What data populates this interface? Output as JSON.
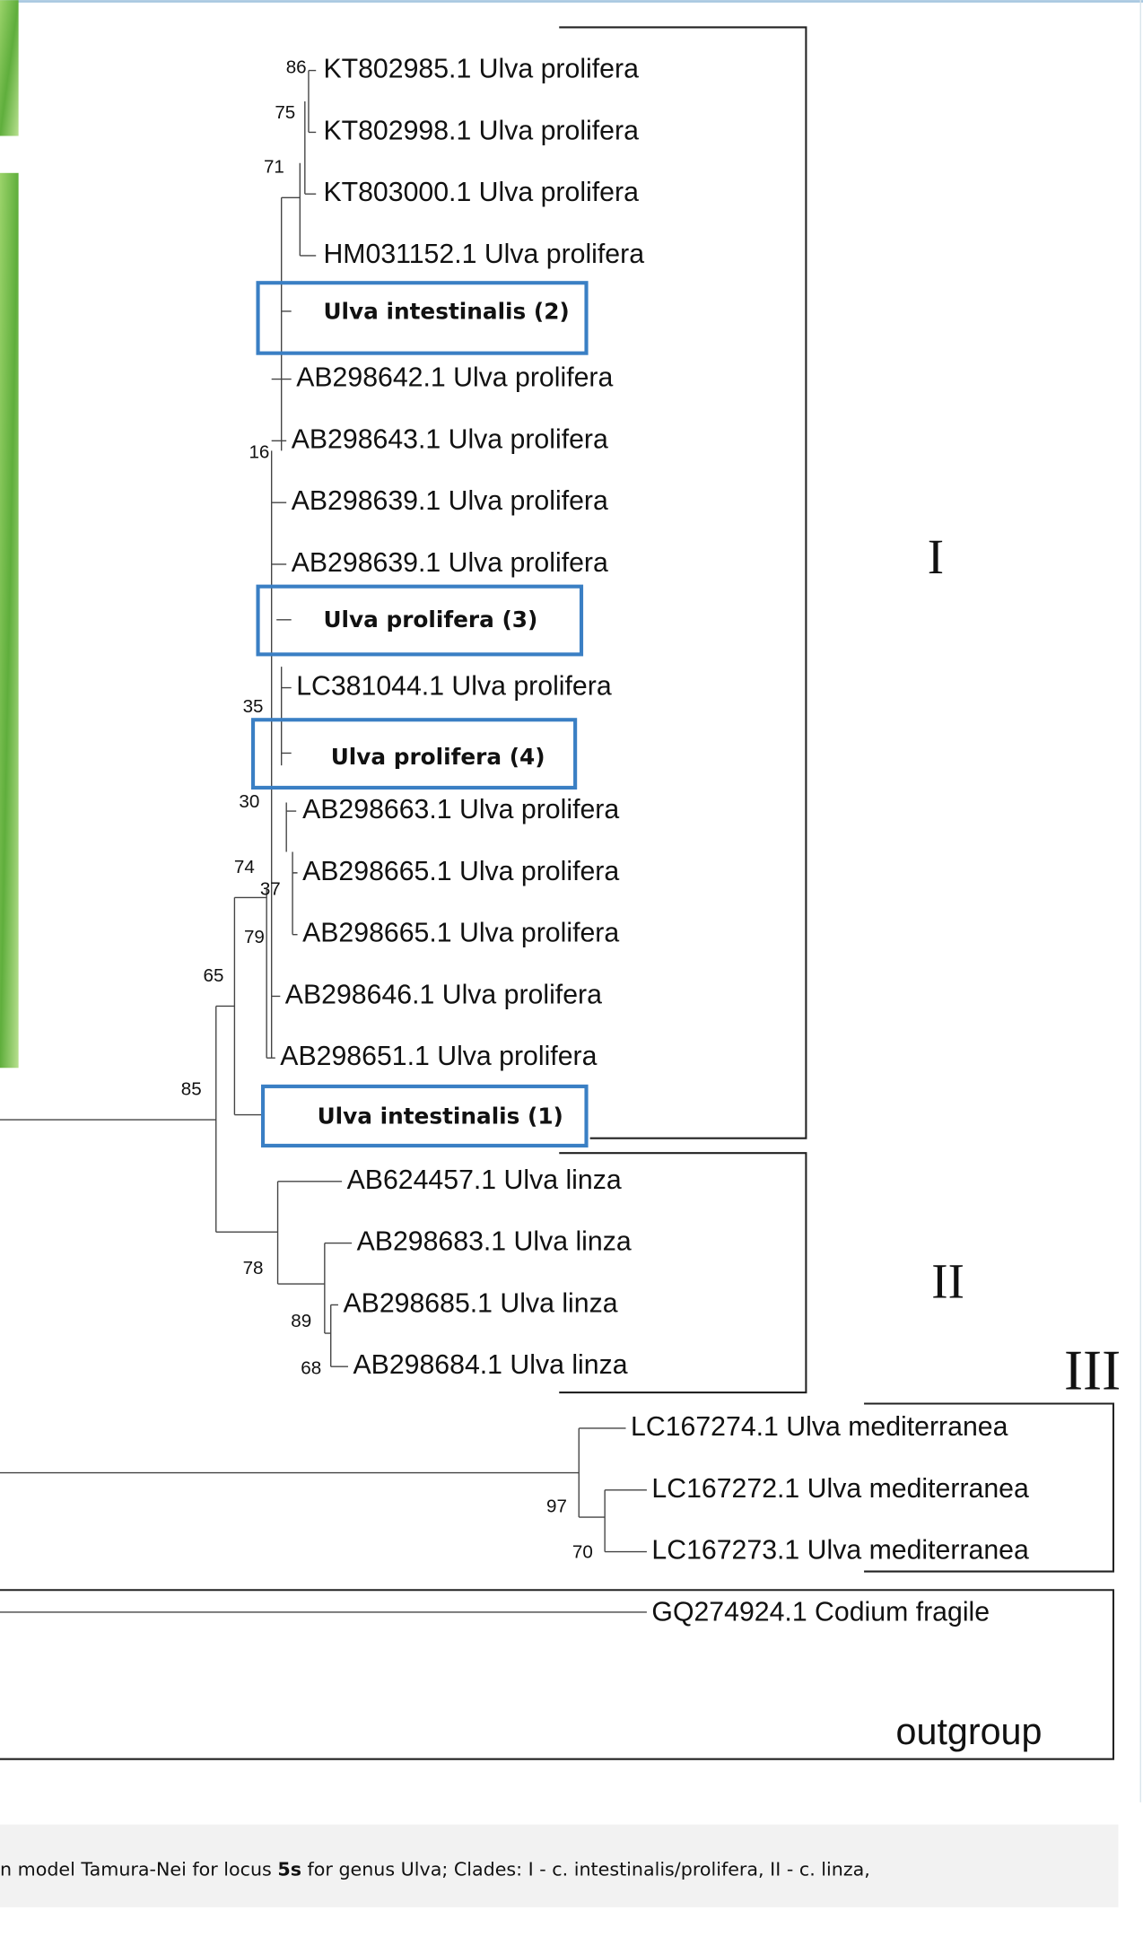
{
  "taxa": [
    "KT802985.1 Ulva prolifera",
    "KT802998.1 Ulva prolifera",
    "KT803000.1 Ulva prolifera",
    "HM031152.1 Ulva prolifera",
    "Ulva intestinalis (2)",
    "AB298642.1 Ulva prolifera",
    "AB298643.1 Ulva prolifera",
    "AB298639.1 Ulva prolifera",
    "AB298639.1 Ulva prolifera",
    "Ulva prolifera (3)",
    "LC381044.1 Ulva prolifera",
    "Ulva prolifera (4)",
    "AB298663.1 Ulva prolifera",
    "AB298665.1 Ulva prolifera",
    "AB298665.1 Ulva prolifera",
    "AB298646.1 Ulva prolifera",
    "AB298651.1 Ulva prolifera",
    "Ulva intestinalis (1)",
    "AB624457.1 Ulva linza",
    "AB298683.1 Ulva linza",
    "AB298685.1 Ulva linza",
    "AB298684.1 Ulva linza",
    "LC167274.1 Ulva mediterranea",
    "LC167272.1 Ulva mediterranea",
    "LC167273.1 Ulva mediterranea",
    "GQ274924.1 Codium fragile"
  ],
  "bootstrap": [
    "86",
    "75",
    "71",
    "16",
    "35",
    "30",
    "74",
    "37",
    "79",
    "65",
    "85",
    "78",
    "89",
    "68",
    "97",
    "70"
  ],
  "clades": [
    "I",
    "II",
    "III",
    "outgroup"
  ],
  "caption": {
    "before": "n model Tamura-Nei for locus ",
    "bold": "5s",
    "after": " for genus Ulva; Clades: I - c. intestinalis/prolifera, II - c. linza,"
  }
}
